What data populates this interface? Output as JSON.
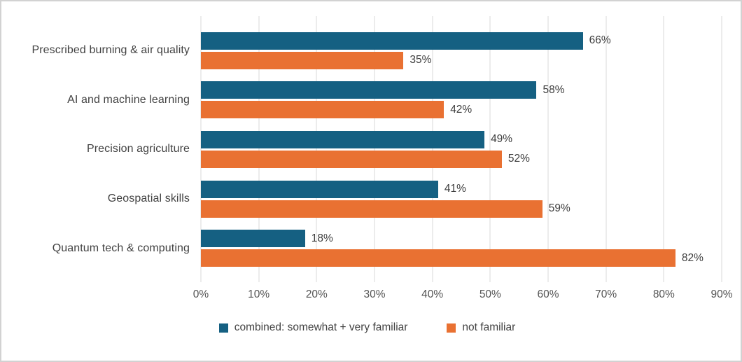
{
  "chart_data": {
    "type": "bar",
    "orientation": "horizontal",
    "title": "",
    "xlabel": "",
    "ylabel": "",
    "categories": [
      "Prescribed burning & air quality",
      "AI and machine learning",
      "Precision agriculture",
      "Geospatial skills",
      "Quantum tech & computing"
    ],
    "series": [
      {
        "name": "combined: somewhat + very familiar",
        "color": "#156082",
        "values": [
          66,
          58,
          49,
          41,
          18
        ]
      },
      {
        "name": "not familiar",
        "color": "#E97132",
        "values": [
          35,
          42,
          52,
          59,
          82
        ]
      }
    ],
    "value_suffix": "%",
    "x_ticks": [
      "0%",
      "10%",
      "20%",
      "30%",
      "40%",
      "50%",
      "60%",
      "70%",
      "80%",
      "90%"
    ],
    "xlim": [
      0,
      90
    ],
    "grid": true,
    "gridline_color": "#d9d9d9",
    "legend_position": "bottom"
  }
}
